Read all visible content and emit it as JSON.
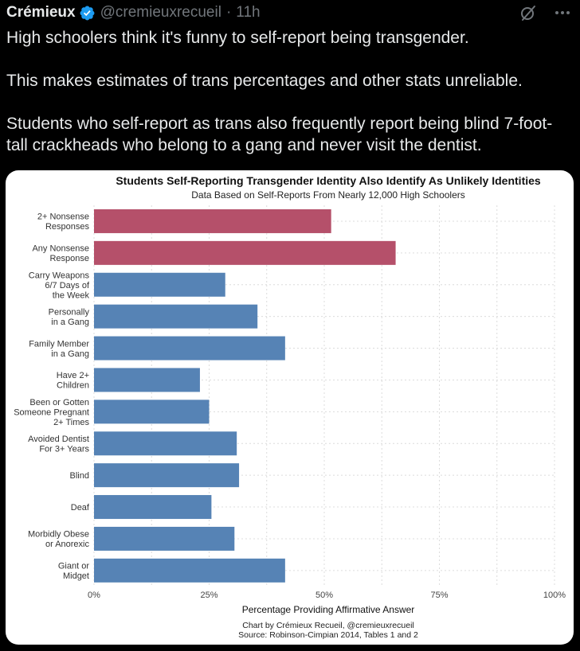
{
  "tweet": {
    "author_name": "Crémieux",
    "handle": "@cremieuxrecueil",
    "separator": "·",
    "time": "11h",
    "paragraphs": [
      "High schoolers think it's funny to self-report being transgender.",
      "This makes estimates of trans percentages and other stats unreliable.",
      "Students who self-report as trans also frequently report being blind 7-foot-tall crackheads who belong to a gang and never visit the dentist."
    ],
    "icons": [
      "verified-badge-icon",
      "grok-icon",
      "more-options-icon"
    ]
  },
  "colors": {
    "background": "#000000",
    "text": "#e7e9ea",
    "muted": "#71767b",
    "verified": "#1d9bf0",
    "bar_highlight": "#b5506a",
    "bar_default": "#5683b5"
  },
  "chart_data": {
    "type": "bar",
    "orientation": "horizontal",
    "title": "Students Self-Reporting Transgender Identity Also Identify As Unlikely Identities",
    "subtitle": "Data Based on Self-Reports From Nearly 12,000 High Schoolers",
    "xlabel": "Percentage Providing Affirmative Answer",
    "xlim": [
      0,
      100
    ],
    "xticks": [
      "0%",
      "25%",
      "50%",
      "75%",
      "100%"
    ],
    "grid": true,
    "categories": [
      [
        "2+ Nonsense",
        "Responses"
      ],
      [
        "Any Nonsense",
        "Response"
      ],
      [
        "Carry Weapons",
        "6/7 Days of",
        "the Week"
      ],
      [
        "Personally",
        "in a Gang"
      ],
      [
        "Family Member",
        "in a Gang"
      ],
      [
        "Have 2+",
        "Children"
      ],
      [
        "Been or Gotten",
        "Someone Pregnant",
        "2+ Times"
      ],
      [
        "Avoided Dentist",
        "For 3+ Years"
      ],
      [
        "Blind"
      ],
      [
        "Deaf"
      ],
      [
        "Morbidly Obese",
        "or Anorexic"
      ],
      [
        "Giant or",
        "Midget"
      ]
    ],
    "values": [
      51.5,
      65.5,
      28.5,
      35.5,
      41.5,
      23,
      25,
      31,
      31.5,
      25.5,
      30.5,
      41.5
    ],
    "highlight": [
      true,
      true,
      false,
      false,
      false,
      false,
      false,
      false,
      false,
      false,
      false,
      false
    ],
    "credit": "Chart by Crémieux Recueil, @cremieuxrecueil",
    "source": "Source: Robinson-Cimpian 2014, Tables 1 and 2"
  }
}
